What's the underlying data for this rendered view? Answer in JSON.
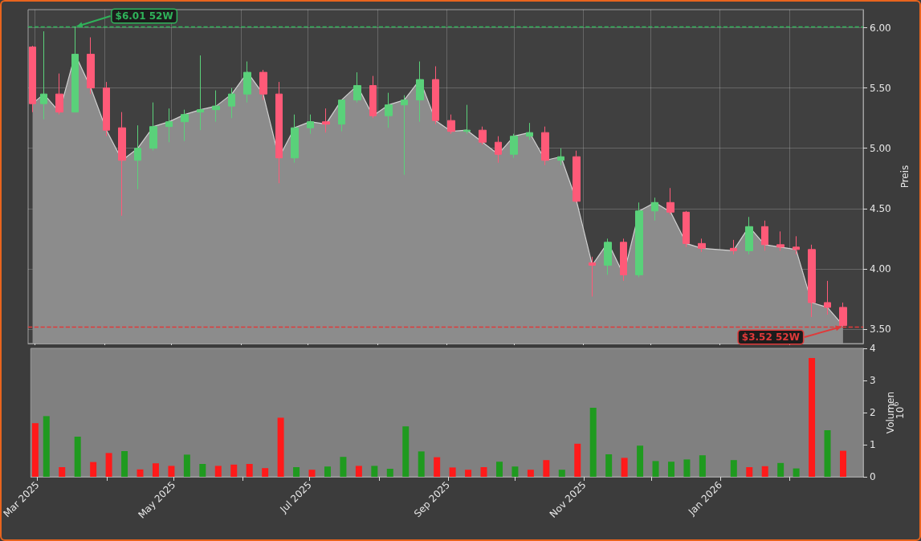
{
  "chart_data": [
    {
      "type": "candlestick",
      "ylabel": "Preis",
      "grid": true,
      "tick_labels": "y",
      "xticks": [
        {
          "value": "2025-03",
          "label": null
        },
        {
          "value": "2025-04",
          "label": null
        },
        {
          "value": "2025-05",
          "label": null
        },
        {
          "value": "2025-06",
          "label": null
        },
        {
          "value": "2025-07",
          "label": null
        },
        {
          "value": "2025-08",
          "label": null
        },
        {
          "value": "2025-09",
          "label": null
        },
        {
          "value": "2025-10",
          "label": null
        },
        {
          "value": "2025-11",
          "label": null
        },
        {
          "value": "2025-12",
          "label": null
        },
        {
          "value": "2026-01",
          "label": null
        },
        {
          "value": "2026-02",
          "label": null
        }
      ],
      "x": [
        "2025-02-28",
        "2025-03-05",
        "2025-03-12",
        "2025-03-19",
        "2025-03-26",
        "2025-04-02",
        "2025-04-09",
        "2025-04-16",
        "2025-04-23",
        "2025-04-30",
        "2025-05-07",
        "2025-05-14",
        "2025-05-21",
        "2025-05-28",
        "2025-06-04",
        "2025-06-11",
        "2025-06-18",
        "2025-06-25",
        "2025-07-02",
        "2025-07-09",
        "2025-07-16",
        "2025-07-23",
        "2025-07-30",
        "2025-08-06",
        "2025-08-13",
        "2025-08-20",
        "2025-08-27",
        "2025-09-03",
        "2025-09-10",
        "2025-09-17",
        "2025-09-24",
        "2025-10-01",
        "2025-10-08",
        "2025-10-15",
        "2025-10-22",
        "2025-10-29",
        "2025-11-05",
        "2025-11-12",
        "2025-11-19",
        "2025-11-26",
        "2025-12-03",
        "2025-12-10",
        "2025-12-17",
        "2025-12-24",
        "2026-01-07",
        "2026-01-14",
        "2026-01-21",
        "2026-01-28",
        "2026-02-04",
        "2026-02-11",
        "2026-02-18",
        "2026-02-25"
      ],
      "xlim": [
        "2025-02-26",
        "2026-03-06"
      ],
      "ylim": [
        3.38,
        6.15
      ],
      "yticks": [
        {
          "value": 3.5,
          "label": "3.50"
        },
        {
          "value": 4,
          "label": "4.00"
        },
        {
          "value": 4.5,
          "label": "4.50"
        },
        {
          "value": 5,
          "label": "5.00"
        },
        {
          "value": 5.5,
          "label": "5.50"
        },
        {
          "value": 6,
          "label": "6.00"
        }
      ],
      "series": [
        {
          "type": "area",
          "color": "#8c8c8c",
          "values": [
            5.37,
            5.45,
            5.3,
            5.78,
            5.5,
            5.15,
            4.9,
            5.0,
            5.18,
            5.22,
            5.28,
            5.32,
            5.35,
            5.45,
            5.63,
            5.45,
            4.92,
            5.17,
            5.22,
            5.2,
            5.4,
            5.52,
            5.27,
            5.36,
            5.4,
            5.57,
            5.23,
            5.14,
            5.15,
            5.05,
            4.95,
            5.1,
            5.13,
            4.9,
            4.93,
            4.56,
            4.03,
            4.22,
            3.95,
            4.48,
            4.55,
            4.47,
            4.21,
            4.17,
            4.15,
            4.35,
            4.2,
            4.18,
            4.16,
            3.72,
            3.68,
            3.53
          ]
        },
        {
          "type": "candlestick",
          "ohlc": [
            [
              5.84,
              5.85,
              5.3,
              5.37
            ],
            [
              5.37,
              5.97,
              5.24,
              5.45
            ],
            [
              5.45,
              5.62,
              5.28,
              5.3
            ],
            [
              5.3,
              6.01,
              5.3,
              5.78
            ],
            [
              5.78,
              5.92,
              5.45,
              5.5
            ],
            [
              5.5,
              5.55,
              5.1,
              5.15
            ],
            [
              5.17,
              5.3,
              4.44,
              4.9
            ],
            [
              4.9,
              5.19,
              4.66,
              5.0
            ],
            [
              5.0,
              5.38,
              4.98,
              5.18
            ],
            [
              5.18,
              5.33,
              5.05,
              5.22
            ],
            [
              5.22,
              5.32,
              5.06,
              5.28
            ],
            [
              5.3,
              5.77,
              5.15,
              5.32
            ],
            [
              5.32,
              5.48,
              5.22,
              5.35
            ],
            [
              5.35,
              5.5,
              5.25,
              5.45
            ],
            [
              5.45,
              5.72,
              5.38,
              5.63
            ],
            [
              5.63,
              5.65,
              5.4,
              5.45
            ],
            [
              5.45,
              5.55,
              4.71,
              4.92
            ],
            [
              4.92,
              5.28,
              4.88,
              5.17
            ],
            [
              5.17,
              5.28,
              5.12,
              5.22
            ],
            [
              5.22,
              5.33,
              5.13,
              5.2
            ],
            [
              5.2,
              5.4,
              5.14,
              5.4
            ],
            [
              5.4,
              5.63,
              5.38,
              5.52
            ],
            [
              5.52,
              5.6,
              5.25,
              5.27
            ],
            [
              5.27,
              5.46,
              5.17,
              5.36
            ],
            [
              5.36,
              5.44,
              4.78,
              5.4
            ],
            [
              5.4,
              5.72,
              5.22,
              5.57
            ],
            [
              5.57,
              5.68,
              5.2,
              5.23
            ],
            [
              5.23,
              5.28,
              5.12,
              5.14
            ],
            [
              5.14,
              5.36,
              5.12,
              5.15
            ],
            [
              5.15,
              5.18,
              5.03,
              5.05
            ],
            [
              5.05,
              5.1,
              4.88,
              4.95
            ],
            [
              4.95,
              5.12,
              4.92,
              5.1
            ],
            [
              5.1,
              5.21,
              5.07,
              5.13
            ],
            [
              5.13,
              5.18,
              4.86,
              4.9
            ],
            [
              4.9,
              5.0,
              4.86,
              4.93
            ],
            [
              4.93,
              4.98,
              4.55,
              4.56
            ],
            [
              4.05,
              4.1,
              3.77,
              4.03
            ],
            [
              4.03,
              4.25,
              3.95,
              4.22
            ],
            [
              4.22,
              4.25,
              3.9,
              3.95
            ],
            [
              3.95,
              4.55,
              3.93,
              4.48
            ],
            [
              4.48,
              4.59,
              4.4,
              4.55
            ],
            [
              4.55,
              4.67,
              4.45,
              4.47
            ],
            [
              4.47,
              4.48,
              4.18,
              4.21
            ],
            [
              4.21,
              4.25,
              4.14,
              4.17
            ],
            [
              4.17,
              4.24,
              4.12,
              4.15
            ],
            [
              4.15,
              4.43,
              4.12,
              4.35
            ],
            [
              4.35,
              4.4,
              4.15,
              4.2
            ],
            [
              4.2,
              4.31,
              4.15,
              4.18
            ],
            [
              4.18,
              4.27,
              4.12,
              4.16
            ],
            [
              4.16,
              4.2,
              3.6,
              3.72
            ],
            [
              3.72,
              3.9,
              3.62,
              3.68
            ],
            [
              3.68,
              3.72,
              3.52,
              3.53
            ]
          ],
          "colors": [
            "#ff5a78",
            "#5ad17a",
            "#ff5a78",
            "#5ad17a",
            "#ff5a78",
            "#ff5a78",
            "#ff5a78",
            "#5ad17a",
            "#5ad17a",
            "#5ad17a",
            "#5ad17a",
            "#5ad17a",
            "#5ad17a",
            "#5ad17a",
            "#5ad17a",
            "#ff5a78",
            "#ff5a78",
            "#5ad17a",
            "#5ad17a",
            "#ff5a78",
            "#5ad17a",
            "#5ad17a",
            "#ff5a78",
            "#5ad17a",
            "#5ad17a",
            "#5ad17a",
            "#ff5a78",
            "#ff5a78",
            "#5ad17a",
            "#ff5a78",
            "#ff5a78",
            "#5ad17a",
            "#5ad17a",
            "#ff5a78",
            "#5ad17a",
            "#ff5a78",
            "#ff5a78",
            "#5ad17a",
            "#ff5a78",
            "#5ad17a",
            "#5ad17a",
            "#ff5a78",
            "#ff5a78",
            "#ff5a78",
            "#ff5a78",
            "#5ad17a",
            "#ff5a78",
            "#ff5a78",
            "#ff5a78",
            "#ff5a78",
            "#ff5a78",
            "#ff5a78"
          ]
        }
      ],
      "ref_lines": [
        {
          "axis": "y",
          "value": 6.01,
          "color": "#2fb35a",
          "line_style": "dashed"
        },
        {
          "axis": "y",
          "value": 3.52,
          "color": "#e03a3a",
          "line_style": "dashed"
        }
      ],
      "annotations": [
        {
          "text": "$6.01 52W",
          "x": "2025-03-19",
          "y": 6.01
        },
        {
          "text": "$3.52 52W",
          "x": "2026-02-25",
          "y": 3.52
        }
      ]
    },
    {
      "type": "bar",
      "ylabel": "Volumen",
      "annotations": [
        "10$^{6}$"
      ],
      "x": [
        "2025-02-28",
        "2025-03-05",
        "2025-03-12",
        "2025-03-19",
        "2025-03-26",
        "2025-04-02",
        "2025-04-09",
        "2025-04-16",
        "2025-04-23",
        "2025-04-30",
        "2025-05-07",
        "2025-05-14",
        "2025-05-21",
        "2025-05-28",
        "2025-06-04",
        "2025-06-11",
        "2025-06-18",
        "2025-06-25",
        "2025-07-02",
        "2025-07-09",
        "2025-07-16",
        "2025-07-23",
        "2025-07-30",
        "2025-08-06",
        "2025-08-13",
        "2025-08-20",
        "2025-08-27",
        "2025-09-03",
        "2025-09-10",
        "2025-09-17",
        "2025-09-24",
        "2025-10-01",
        "2025-10-08",
        "2025-10-15",
        "2025-10-22",
        "2025-10-29",
        "2025-11-05",
        "2025-11-12",
        "2025-11-19",
        "2025-11-26",
        "2025-12-03",
        "2025-12-10",
        "2025-12-17",
        "2025-12-24",
        "2026-01-07",
        "2026-01-14",
        "2026-01-21",
        "2026-01-28",
        "2026-02-04",
        "2026-02-11",
        "2026-02-18",
        "2026-02-25"
      ],
      "xlim": [
        "2025-02-26",
        "2026-03-06"
      ],
      "xticks": [
        {
          "value": "2025-03",
          "label": "Mar 2025"
        },
        {
          "value": "2025-04",
          "label": null
        },
        {
          "value": "2025-05",
          "label": "May 2025"
        },
        {
          "value": "2025-06",
          "label": null
        },
        {
          "value": "2025-07",
          "label": "Jul 2025"
        },
        {
          "value": "2025-08",
          "label": null
        },
        {
          "value": "2025-09",
          "label": "Sep 2025"
        },
        {
          "value": "2025-10",
          "label": null
        },
        {
          "value": "2025-11",
          "label": "Nov 2025"
        },
        {
          "value": "2025-12",
          "label": null
        },
        {
          "value": "2026-01",
          "label": "Jan 2026"
        },
        {
          "value": "2026-02",
          "label": null
        }
      ],
      "ylim": [
        0,
        4
      ],
      "yticks": [
        0,
        1,
        2,
        3,
        4
      ],
      "values": [
        1.67,
        1.89,
        0.3,
        1.25,
        0.46,
        0.74,
        0.8,
        0.23,
        0.42,
        0.34,
        0.69,
        0.4,
        0.34,
        0.38,
        0.4,
        0.27,
        1.84,
        0.3,
        0.22,
        0.32,
        0.62,
        0.34,
        0.34,
        0.25,
        1.57,
        0.79,
        0.61,
        0.29,
        0.22,
        0.3,
        0.47,
        0.32,
        0.22,
        0.52,
        0.22,
        1.03,
        2.15,
        0.7,
        0.59,
        0.97,
        0.49,
        0.47,
        0.54,
        0.67,
        0.52,
        0.3,
        0.33,
        0.43,
        0.26,
        3.7,
        1.45,
        0.81
      ],
      "colors": [
        "#ff1a1a",
        "#1f9a1f",
        "#ff1a1a",
        "#1f9a1f",
        "#ff1a1a",
        "#ff1a1a",
        "#1f9a1f",
        "#ff1a1a",
        "#ff1a1a",
        "#ff1a1a",
        "#1f9a1f",
        "#1f9a1f",
        "#ff1a1a",
        "#ff1a1a",
        "#ff1a1a",
        "#ff1a1a",
        "#ff1a1a",
        "#1f9a1f",
        "#ff1a1a",
        "#1f9a1f",
        "#1f9a1f",
        "#ff1a1a",
        "#1f9a1f",
        "#1f9a1f",
        "#1f9a1f",
        "#1f9a1f",
        "#ff1a1a",
        "#ff1a1a",
        "#ff1a1a",
        "#ff1a1a",
        "#1f9a1f",
        "#1f9a1f",
        "#ff1a1a",
        "#ff1a1a",
        "#1f9a1f",
        "#ff1a1a",
        "#1f9a1f",
        "#1f9a1f",
        "#ff1a1a",
        "#1f9a1f",
        "#1f9a1f",
        "#1f9a1f",
        "#1f9a1f",
        "#1f9a1f",
        "#1f9a1f",
        "#ff1a1a",
        "#ff1a1a",
        "#1f9a1f",
        "#1f9a1f",
        "#ff1a1a",
        "#1f9a1f",
        "#ff1a1a"
      ]
    }
  ]
}
